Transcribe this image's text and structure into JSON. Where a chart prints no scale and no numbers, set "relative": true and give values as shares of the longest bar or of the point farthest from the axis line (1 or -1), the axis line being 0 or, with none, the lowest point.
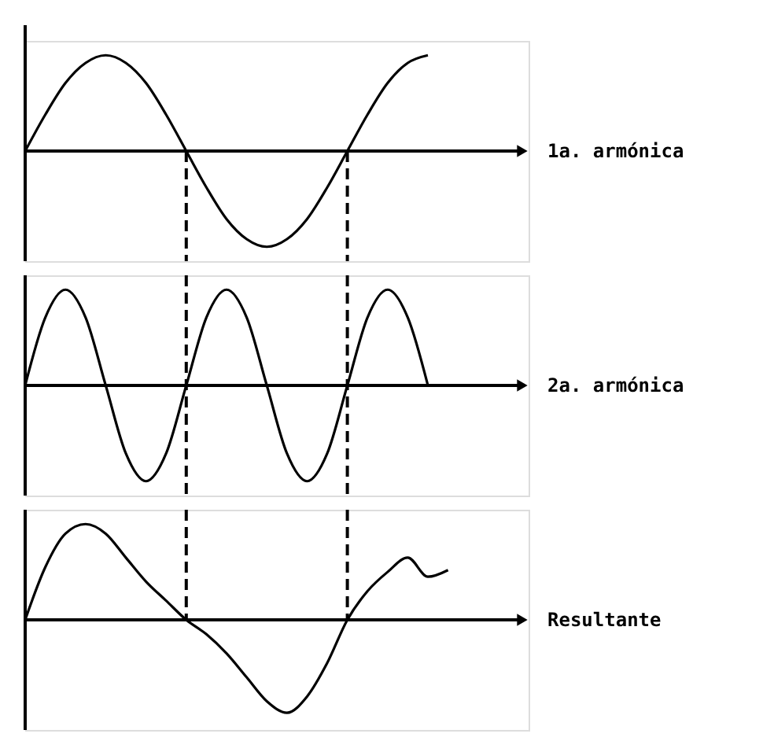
{
  "chart_data": [
    {
      "type": "line",
      "relative": true,
      "tick_labels": false,
      "legend": "right",
      "marker": "none",
      "line_style": "solid",
      "categories": [
        null,
        null,
        null,
        null,
        null,
        null,
        null,
        null,
        null,
        null,
        null,
        null,
        null,
        null,
        null,
        null,
        null,
        null,
        null,
        null,
        null,
        null
      ],
      "series": [
        {
          "name": "1a. armónica",
          "color": "#000000",
          "values": [
            0,
            0.38,
            0.71,
            0.92,
            1,
            0.92,
            0.71,
            0.38,
            0,
            -0.38,
            -0.71,
            -0.92,
            -1,
            -0.92,
            -0.71,
            -0.38,
            0,
            0.38,
            0.71,
            0.92,
            1,
            null
          ]
        }
      ]
    },
    {
      "type": "line",
      "relative": true,
      "tick_labels": false,
      "legend": "right",
      "marker": "none",
      "line_style": "solid",
      "categories": [
        null,
        null,
        null,
        null,
        null,
        null,
        null,
        null,
        null,
        null,
        null,
        null,
        null,
        null,
        null,
        null,
        null,
        null,
        null,
        null,
        null,
        null
      ],
      "series": [
        {
          "name": "2a. armónica",
          "color": "#000000",
          "values": [
            0,
            0.71,
            1,
            0.71,
            0,
            -0.71,
            -1,
            -0.71,
            0,
            0.71,
            1,
            0.71,
            0,
            -0.71,
            -1,
            -0.71,
            0,
            0.71,
            1,
            0.71,
            0,
            null
          ]
        }
      ]
    },
    {
      "type": "line",
      "relative": true,
      "tick_labels": false,
      "legend": "right",
      "marker": "none",
      "line_style": "solid",
      "categories": [
        null,
        null,
        null,
        null,
        null,
        null,
        null,
        null,
        null,
        null,
        null,
        null,
        null,
        null,
        null,
        null,
        null,
        null,
        null,
        null,
        null,
        null
      ],
      "series": [
        {
          "name": "Resultante",
          "color": "#000000",
          "values": [
            0,
            0.55,
            0.9,
            1.0,
            0.9,
            0.65,
            0.4,
            0.2,
            0,
            -0.15,
            -0.35,
            -0.6,
            -0.85,
            -0.97,
            -0.8,
            -0.45,
            0,
            0.3,
            0.5,
            0.65,
            0.45,
            0.52
          ]
        }
      ]
    }
  ]
}
